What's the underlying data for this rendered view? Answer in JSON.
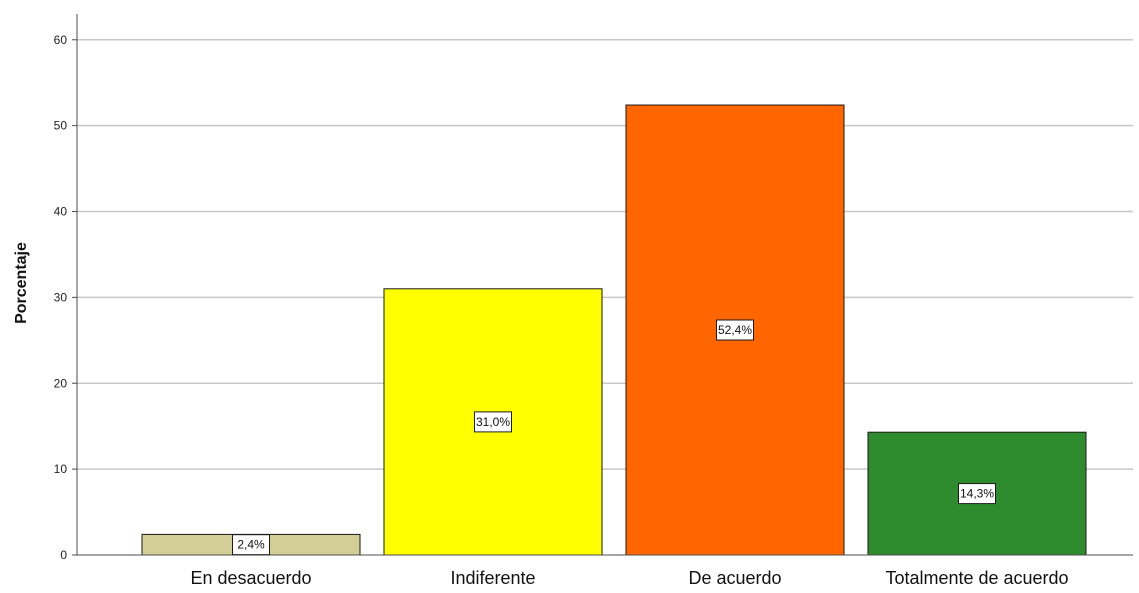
{
  "chart_data": {
    "type": "bar",
    "categories": [
      "En desacuerdo",
      "Indiferente",
      "De acuerdo",
      "Totalmente de acuerdo"
    ],
    "values": [
      2.4,
      31.0,
      52.4,
      14.3
    ],
    "data_labels": [
      "2,4%",
      "31,0%",
      "52,4%",
      "14,3%"
    ],
    "colors": [
      "#d3cd96",
      "#ffff00",
      "#ff6600",
      "#2e8b2e"
    ],
    "ylabel": "Porcentaje",
    "xlabel": "",
    "title": "",
    "ylim": [
      0,
      63
    ],
    "y_ticks": [
      0,
      10,
      20,
      30,
      40,
      50,
      60
    ],
    "grid": true,
    "legend": "none"
  }
}
